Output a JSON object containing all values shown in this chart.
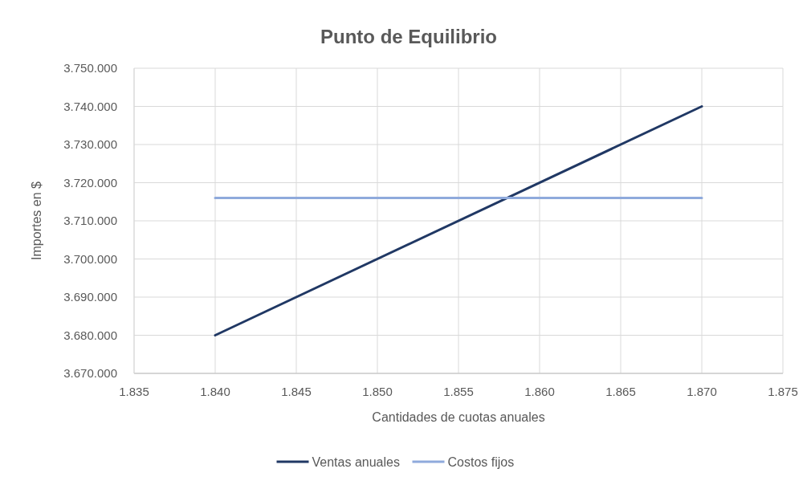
{
  "chart_data": {
    "type": "line",
    "title": "Punto de Equilibrio",
    "xlabel": "Cantidades de cuotas anuales",
    "ylabel": "Importes en $",
    "x": [
      1840,
      1870
    ],
    "series": [
      {
        "name": "Ventas anuales",
        "color": "#203864",
        "values": [
          3680000,
          3740000
        ]
      },
      {
        "name": "Costos fijos",
        "color": "#8faadc",
        "values": [
          3716000,
          3716000
        ]
      }
    ],
    "xlim": [
      1835,
      1875
    ],
    "xticks": [
      {
        "value": 1835,
        "label": "1.835"
      },
      {
        "value": 1840,
        "label": "1.840"
      },
      {
        "value": 1845,
        "label": "1.845"
      },
      {
        "value": 1850,
        "label": "1.850"
      },
      {
        "value": 1855,
        "label": "1.855"
      },
      {
        "value": 1860,
        "label": "1.860"
      },
      {
        "value": 1865,
        "label": "1.865"
      },
      {
        "value": 1870,
        "label": "1.870"
      },
      {
        "value": 1875,
        "label": "1.875"
      }
    ],
    "ylim": [
      3670000,
      3750000
    ],
    "yticks": [
      {
        "value": 3670000,
        "label": "3.670.000"
      },
      {
        "value": 3680000,
        "label": "3.680.000"
      },
      {
        "value": 3690000,
        "label": "3.690.000"
      },
      {
        "value": 3700000,
        "label": "3.700.000"
      },
      {
        "value": 3710000,
        "label": "3.710.000"
      },
      {
        "value": 3720000,
        "label": "3.720.000"
      },
      {
        "value": 3730000,
        "label": "3.730.000"
      },
      {
        "value": 3740000,
        "label": "3.740.000"
      },
      {
        "value": 3750000,
        "label": "3.750.000"
      }
    ],
    "grid": true,
    "legend": "bottom",
    "marker": "none",
    "line_style": "solid"
  }
}
